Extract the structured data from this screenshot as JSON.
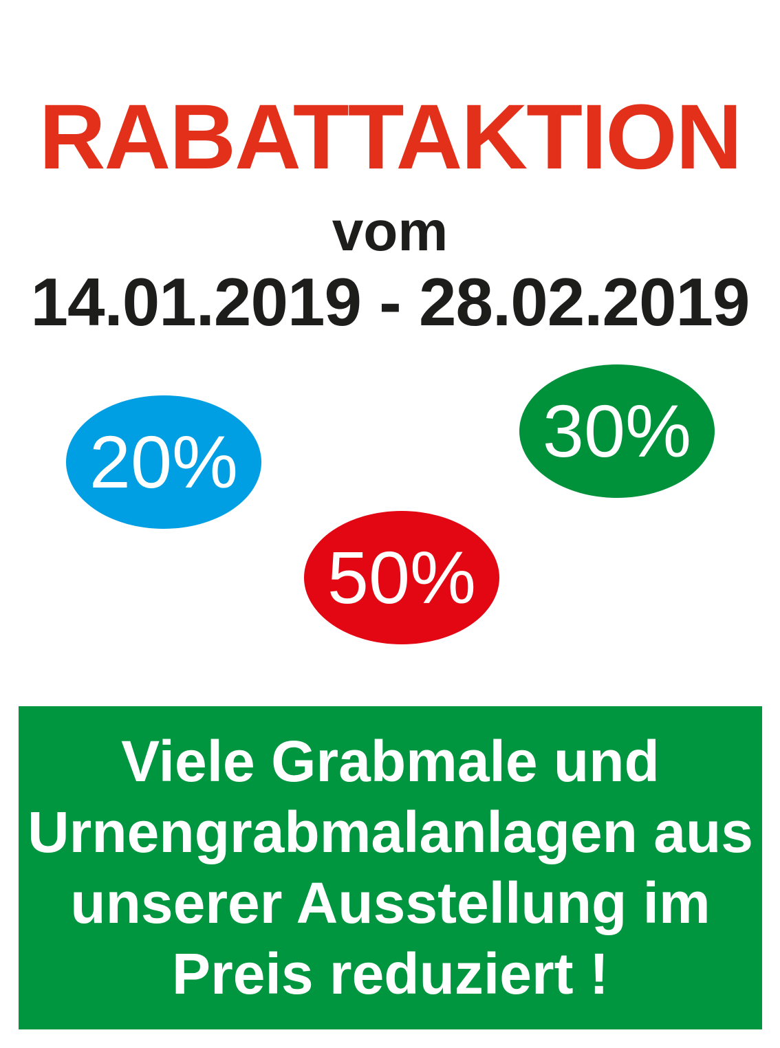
{
  "title": "RABATTAKTION",
  "subtitle": "vom",
  "date_range": "14.01.2019 - 28.02.2019",
  "badges": [
    {
      "label": "20%",
      "color": "#009fe3"
    },
    {
      "label": "30%",
      "color": "#00913b"
    },
    {
      "label": "50%",
      "color": "#e30613"
    }
  ],
  "banner": {
    "color": "#009640",
    "lines": [
      "Viele Grabmale und",
      "Urnengrabmalanlagen aus",
      "unserer Ausstellung im",
      "Preis reduziert !"
    ]
  },
  "colors": {
    "title": "#e3301a",
    "text": "#1d1d1b"
  }
}
